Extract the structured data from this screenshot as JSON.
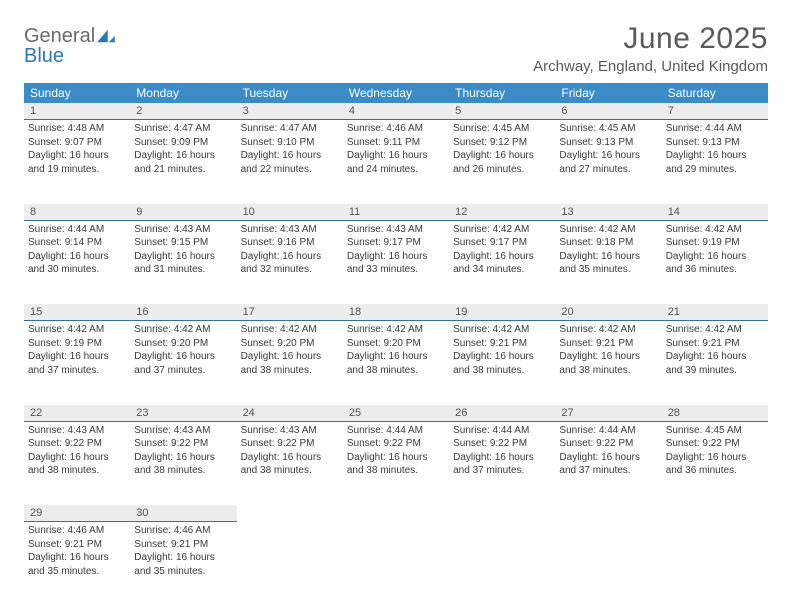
{
  "logo": {
    "text_general": "General",
    "text_blue": "Blue",
    "icon_fill": "#2a7ab8"
  },
  "title": "June 2025",
  "location": "Archway, England, United Kingdom",
  "colors": {
    "header_bg": "#3b8bc6",
    "header_text": "#ffffff",
    "daynum_bg": "#ededed",
    "border": "#3b6d9a"
  },
  "weekdays": [
    "Sunday",
    "Monday",
    "Tuesday",
    "Wednesday",
    "Thursday",
    "Friday",
    "Saturday"
  ],
  "weeks": [
    {
      "nums": [
        "1",
        "2",
        "3",
        "4",
        "5",
        "6",
        "7"
      ],
      "cells": [
        {
          "sunrise": "Sunrise: 4:48 AM",
          "sunset": "Sunset: 9:07 PM",
          "day1": "Daylight: 16 hours",
          "day2": "and 19 minutes."
        },
        {
          "sunrise": "Sunrise: 4:47 AM",
          "sunset": "Sunset: 9:09 PM",
          "day1": "Daylight: 16 hours",
          "day2": "and 21 minutes."
        },
        {
          "sunrise": "Sunrise: 4:47 AM",
          "sunset": "Sunset: 9:10 PM",
          "day1": "Daylight: 16 hours",
          "day2": "and 22 minutes."
        },
        {
          "sunrise": "Sunrise: 4:46 AM",
          "sunset": "Sunset: 9:11 PM",
          "day1": "Daylight: 16 hours",
          "day2": "and 24 minutes."
        },
        {
          "sunrise": "Sunrise: 4:45 AM",
          "sunset": "Sunset: 9:12 PM",
          "day1": "Daylight: 16 hours",
          "day2": "and 26 minutes."
        },
        {
          "sunrise": "Sunrise: 4:45 AM",
          "sunset": "Sunset: 9:13 PM",
          "day1": "Daylight: 16 hours",
          "day2": "and 27 minutes."
        },
        {
          "sunrise": "Sunrise: 4:44 AM",
          "sunset": "Sunset: 9:13 PM",
          "day1": "Daylight: 16 hours",
          "day2": "and 29 minutes."
        }
      ]
    },
    {
      "nums": [
        "8",
        "9",
        "10",
        "11",
        "12",
        "13",
        "14"
      ],
      "cells": [
        {
          "sunrise": "Sunrise: 4:44 AM",
          "sunset": "Sunset: 9:14 PM",
          "day1": "Daylight: 16 hours",
          "day2": "and 30 minutes."
        },
        {
          "sunrise": "Sunrise: 4:43 AM",
          "sunset": "Sunset: 9:15 PM",
          "day1": "Daylight: 16 hours",
          "day2": "and 31 minutes."
        },
        {
          "sunrise": "Sunrise: 4:43 AM",
          "sunset": "Sunset: 9:16 PM",
          "day1": "Daylight: 16 hours",
          "day2": "and 32 minutes."
        },
        {
          "sunrise": "Sunrise: 4:43 AM",
          "sunset": "Sunset: 9:17 PM",
          "day1": "Daylight: 16 hours",
          "day2": "and 33 minutes."
        },
        {
          "sunrise": "Sunrise: 4:42 AM",
          "sunset": "Sunset: 9:17 PM",
          "day1": "Daylight: 16 hours",
          "day2": "and 34 minutes."
        },
        {
          "sunrise": "Sunrise: 4:42 AM",
          "sunset": "Sunset: 9:18 PM",
          "day1": "Daylight: 16 hours",
          "day2": "and 35 minutes."
        },
        {
          "sunrise": "Sunrise: 4:42 AM",
          "sunset": "Sunset: 9:19 PM",
          "day1": "Daylight: 16 hours",
          "day2": "and 36 minutes."
        }
      ]
    },
    {
      "nums": [
        "15",
        "16",
        "17",
        "18",
        "19",
        "20",
        "21"
      ],
      "cells": [
        {
          "sunrise": "Sunrise: 4:42 AM",
          "sunset": "Sunset: 9:19 PM",
          "day1": "Daylight: 16 hours",
          "day2": "and 37 minutes."
        },
        {
          "sunrise": "Sunrise: 4:42 AM",
          "sunset": "Sunset: 9:20 PM",
          "day1": "Daylight: 16 hours",
          "day2": "and 37 minutes."
        },
        {
          "sunrise": "Sunrise: 4:42 AM",
          "sunset": "Sunset: 9:20 PM",
          "day1": "Daylight: 16 hours",
          "day2": "and 38 minutes."
        },
        {
          "sunrise": "Sunrise: 4:42 AM",
          "sunset": "Sunset: 9:20 PM",
          "day1": "Daylight: 16 hours",
          "day2": "and 38 minutes."
        },
        {
          "sunrise": "Sunrise: 4:42 AM",
          "sunset": "Sunset: 9:21 PM",
          "day1": "Daylight: 16 hours",
          "day2": "and 38 minutes."
        },
        {
          "sunrise": "Sunrise: 4:42 AM",
          "sunset": "Sunset: 9:21 PM",
          "day1": "Daylight: 16 hours",
          "day2": "and 38 minutes."
        },
        {
          "sunrise": "Sunrise: 4:42 AM",
          "sunset": "Sunset: 9:21 PM",
          "day1": "Daylight: 16 hours",
          "day2": "and 39 minutes."
        }
      ]
    },
    {
      "nums": [
        "22",
        "23",
        "24",
        "25",
        "26",
        "27",
        "28"
      ],
      "cells": [
        {
          "sunrise": "Sunrise: 4:43 AM",
          "sunset": "Sunset: 9:22 PM",
          "day1": "Daylight: 16 hours",
          "day2": "and 38 minutes."
        },
        {
          "sunrise": "Sunrise: 4:43 AM",
          "sunset": "Sunset: 9:22 PM",
          "day1": "Daylight: 16 hours",
          "day2": "and 38 minutes."
        },
        {
          "sunrise": "Sunrise: 4:43 AM",
          "sunset": "Sunset: 9:22 PM",
          "day1": "Daylight: 16 hours",
          "day2": "and 38 minutes."
        },
        {
          "sunrise": "Sunrise: 4:44 AM",
          "sunset": "Sunset: 9:22 PM",
          "day1": "Daylight: 16 hours",
          "day2": "and 38 minutes."
        },
        {
          "sunrise": "Sunrise: 4:44 AM",
          "sunset": "Sunset: 9:22 PM",
          "day1": "Daylight: 16 hours",
          "day2": "and 37 minutes."
        },
        {
          "sunrise": "Sunrise: 4:44 AM",
          "sunset": "Sunset: 9:22 PM",
          "day1": "Daylight: 16 hours",
          "day2": "and 37 minutes."
        },
        {
          "sunrise": "Sunrise: 4:45 AM",
          "sunset": "Sunset: 9:22 PM",
          "day1": "Daylight: 16 hours",
          "day2": "and 36 minutes."
        }
      ]
    },
    {
      "nums": [
        "29",
        "30",
        "",
        "",
        "",
        "",
        ""
      ],
      "cells": [
        {
          "sunrise": "Sunrise: 4:46 AM",
          "sunset": "Sunset: 9:21 PM",
          "day1": "Daylight: 16 hours",
          "day2": "and 35 minutes."
        },
        {
          "sunrise": "Sunrise: 4:46 AM",
          "sunset": "Sunset: 9:21 PM",
          "day1": "Daylight: 16 hours",
          "day2": "and 35 minutes."
        },
        null,
        null,
        null,
        null,
        null
      ]
    }
  ]
}
